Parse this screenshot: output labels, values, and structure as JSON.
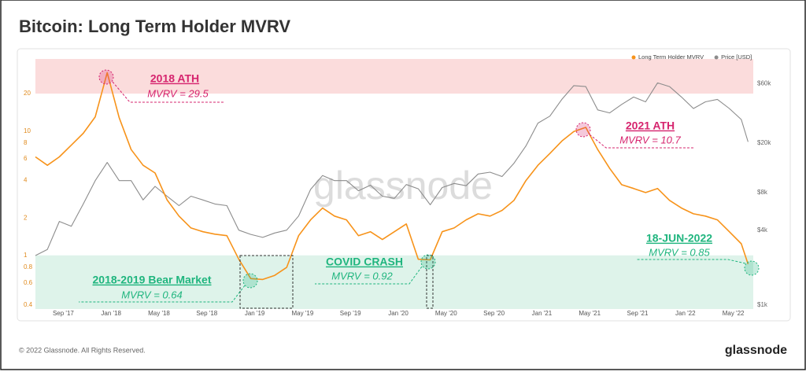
{
  "chart_data": {
    "type": "line",
    "title": "Bitcoin: Long Term Holder MVRV",
    "watermark": "glassnode",
    "log": true,
    "legend": "top-right",
    "xlim": [
      "2017-07",
      "2022-07"
    ],
    "xticks": [
      {
        "value": "2017-09",
        "label": "Sep '17"
      },
      {
        "value": "2018-01",
        "label": "Jan '18"
      },
      {
        "value": "2018-05",
        "label": "May '18"
      },
      {
        "value": "2018-09",
        "label": "Sep '18"
      },
      {
        "value": "2019-01",
        "label": "Jan '19"
      },
      {
        "value": "2019-05",
        "label": "May '19"
      },
      {
        "value": "2019-09",
        "label": "Sep '19"
      },
      {
        "value": "2020-01",
        "label": "Jan '20"
      },
      {
        "value": "2020-05",
        "label": "May '20"
      },
      {
        "value": "2020-09",
        "label": "Sep '20"
      },
      {
        "value": "2021-01",
        "label": "Jan '21"
      },
      {
        "value": "2021-05",
        "label": "May '21"
      },
      {
        "value": "2021-09",
        "label": "Sep '21"
      },
      {
        "value": "2022-01",
        "label": "Jan '22"
      },
      {
        "value": "2022-05",
        "label": "May '22"
      }
    ],
    "ylim": [
      0.37,
      38
    ],
    "yticks": [
      0.4,
      0.6,
      0.8,
      1,
      2,
      4,
      6,
      8,
      10,
      20
    ],
    "y2lim": [
      930,
      95000
    ],
    "y2ticks": [
      {
        "value": 1000,
        "label": "$1k"
      },
      {
        "value": 4000,
        "label": "$4k"
      },
      {
        "value": 8000,
        "label": "$8k"
      },
      {
        "value": 20000,
        "label": "$20k"
      },
      {
        "value": 60000,
        "label": "$60k"
      }
    ],
    "zones": [
      {
        "from": 20,
        "to": 38,
        "color": "#fbdcdc"
      },
      {
        "from": 0.37,
        "to": 1,
        "color": "#def3ea"
      }
    ],
    "x": [
      "2017-07",
      "2017-08",
      "2017-09",
      "2017-10",
      "2017-11",
      "2017-12",
      "2018-01",
      "2018-02",
      "2018-03",
      "2018-04",
      "2018-05",
      "2018-06",
      "2018-07",
      "2018-08",
      "2018-09",
      "2018-10",
      "2018-11",
      "2018-12",
      "2019-01",
      "2019-02",
      "2019-03",
      "2019-04",
      "2019-05",
      "2019-06",
      "2019-07",
      "2019-08",
      "2019-09",
      "2019-10",
      "2019-11",
      "2019-12",
      "2020-01",
      "2020-02",
      "2020-03",
      "2020-04",
      "2020-05",
      "2020-06",
      "2020-07",
      "2020-08",
      "2020-09",
      "2020-10",
      "2020-11",
      "2020-12",
      "2021-01",
      "2021-02",
      "2021-03",
      "2021-04",
      "2021-05",
      "2021-06",
      "2021-07",
      "2021-08",
      "2021-09",
      "2021-10",
      "2021-11",
      "2021-12",
      "2022-01",
      "2022-02",
      "2022-03",
      "2022-04",
      "2022-05",
      "2022-06",
      "2022-06-18"
    ],
    "series": [
      {
        "name": "Long Term Holder MVRV",
        "color": "#f7931a",
        "values": [
          6.2,
          5.3,
          6.2,
          7.7,
          9.6,
          13,
          29.5,
          12.8,
          7.1,
          5.3,
          4.6,
          2.8,
          2.07,
          1.66,
          1.55,
          1.48,
          1.44,
          0.93,
          0.65,
          0.64,
          0.69,
          0.8,
          1.44,
          1.93,
          2.4,
          2.07,
          1.93,
          1.44,
          1.55,
          1.34,
          1.55,
          1.79,
          0.93,
          0.92,
          1.55,
          1.66,
          1.93,
          2.16,
          2.07,
          2.3,
          2.77,
          4.0,
          5.3,
          6.6,
          8.3,
          9.9,
          10.7,
          7.1,
          5.0,
          3.7,
          3.45,
          3.2,
          3.45,
          2.77,
          2.4,
          2.16,
          2.07,
          1.93,
          1.55,
          1.24,
          0.85
        ]
      },
      {
        "name": "Price [USD]",
        "color": "#8c8c8c",
        "axis": "y2",
        "values": [
          2500,
          2800,
          4700,
          4300,
          6500,
          10000,
          14000,
          10000,
          10000,
          7000,
          9000,
          7500,
          6300,
          7500,
          7000,
          6500,
          6300,
          4000,
          3700,
          3500,
          3800,
          4000,
          5200,
          8500,
          11000,
          10000,
          10000,
          8300,
          9200,
          7500,
          7200,
          9300,
          8600,
          6400,
          8800,
          9500,
          9100,
          11300,
          11700,
          10800,
          13800,
          19000,
          29000,
          33000,
          45000,
          58000,
          57000,
          37000,
          35000,
          41000,
          47000,
          43000,
          61000,
          57000,
          47000,
          38000,
          43000,
          45000,
          38000,
          31000,
          20500
        ]
      }
    ],
    "annotations": [
      {
        "title": "2018 ATH",
        "text": "MVRV = 29.5",
        "color": "#d6246e"
      },
      {
        "title": "2021 ATH",
        "text": "MVRV = 10.7",
        "color": "#d6246e"
      },
      {
        "title": "18-JUN-2022",
        "text": "MVRV = 0.85",
        "color": "#1fb57e"
      },
      {
        "title": "COVID CRASH",
        "text": "MVRV = 0.92",
        "color": "#1fb57e"
      },
      {
        "title": "2018-2019 Bear Market",
        "text": "MVRV = 0.64",
        "color": "#1fb57e"
      }
    ]
  },
  "footer": {
    "copyright": "© 2022 Glassnode. All Rights Reserved.",
    "logo": "glassnode"
  }
}
